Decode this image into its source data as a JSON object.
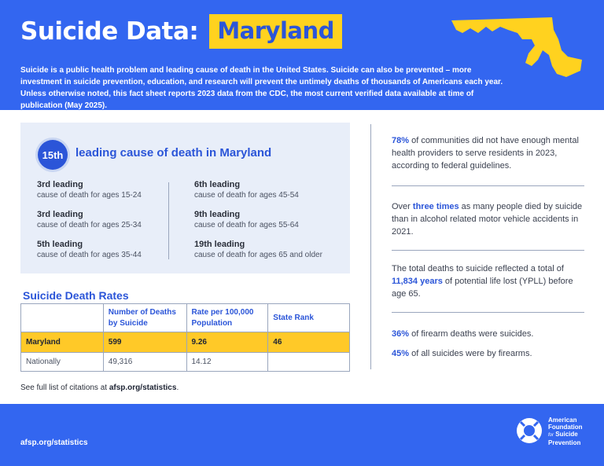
{
  "header": {
    "title": "Suicide Data:",
    "state": "Maryland",
    "intro": "Suicide is a public health problem and leading cause of death in the United States. Suicide can also be prevented – more investment in suicide prevention, education, and research will prevent the untimely deaths of thousands of Americans each year. Unless otherwise noted, this fact sheet reports 2023 data from the CDC, the most current verified data available at time of publication (May 2025)."
  },
  "colors": {
    "brand_blue": "#3366f0",
    "accent_yellow": "#ffd21f",
    "panel_bg": "#e8eef9"
  },
  "leading_cause": {
    "rank": "15th",
    "label": "leading cause of death in Maryland",
    "items": [
      {
        "head": "3rd leading",
        "sub": "cause of death for ages 15-24"
      },
      {
        "head": "3rd leading",
        "sub": "cause of death for ages 25-34"
      },
      {
        "head": "5th leading",
        "sub": "cause of death for ages 35-44"
      },
      {
        "head": "6th leading",
        "sub": "cause of death for ages 45-54"
      },
      {
        "head": "9th leading",
        "sub": "cause of death for ages 55-64"
      },
      {
        "head": "19th leading",
        "sub": "cause of death for ages 65 and older"
      }
    ]
  },
  "rates": {
    "title": "Suicide Death Rates",
    "headers": [
      "",
      "Number of Deaths by Suicide",
      "Rate per 100,000 Population",
      "State Rank"
    ],
    "rows": [
      [
        "Maryland",
        "599",
        "9.26",
        "46"
      ],
      [
        "Nationally",
        "49,316",
        "14.12",
        ""
      ]
    ]
  },
  "citations": {
    "prefix": "See full list of citations at ",
    "link": "afsp.org/statistics",
    "suffix": "."
  },
  "stats": {
    "s1_hl": "78%",
    "s1_rest": " of communities did not have enough mental health providers to serve residents in 2023, according to federal guidelines.",
    "s2_pre": "Over ",
    "s2_hl": "three times",
    "s2_rest": " as many people died by suicide than in alcohol related motor vehicle accidents in 2021.",
    "s3_pre": "The total deaths to suicide reflected a total of ",
    "s3_hl": "11,834 years",
    "s3_rest": " of potential life lost (YPLL) before age 65.",
    "s4_hl": "36%",
    "s4_rest": " of firearm deaths were suicides.",
    "s5_hl": "45%",
    "s5_rest": " of all suicides were by firearms."
  },
  "footer": {
    "url": "afsp.org/statistics",
    "logo_line1": "American",
    "logo_line2": "Foundation",
    "logo_for": "for",
    "logo_line3": "Suicide",
    "logo_line4": "Prevention",
    "logo_icon": "life-ring-icon"
  }
}
